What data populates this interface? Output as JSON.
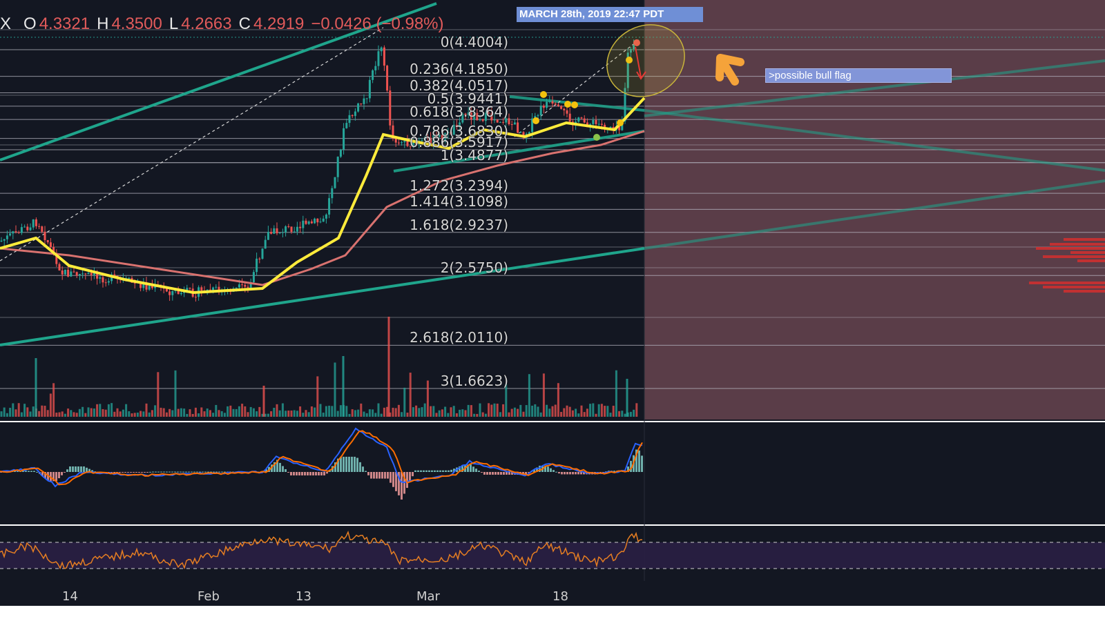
{
  "header": {
    "symbol_fragment": "X",
    "open_key": "O",
    "open_value": "4.3321",
    "high_key": "H",
    "high_value": "4.3500",
    "low_key": "L",
    "low_value": "4.2663",
    "close_key": "C",
    "close_value": "4.2919",
    "change_text": "−0.0426 (−0.98%)"
  },
  "timestamp_label": "MARCH 28th, 2019 22:47 PDT",
  "annotation_note": ">possible bull flag",
  "fib_levels": [
    {
      "label": "0(4.4004)",
      "price": 4.4004
    },
    {
      "label": "0.236(4.1850)",
      "price": 4.185
    },
    {
      "label": "0.382(4.0517)",
      "price": 4.0517
    },
    {
      "label": "0.5(3.9441)",
      "price": 3.9441
    },
    {
      "label": "0.618(3.8364)",
      "price": 3.8364
    },
    {
      "label": "0.786(3.6830)",
      "price": 3.683
    },
    {
      "label": "0.886(3.5917)",
      "price": 3.5917
    },
    {
      "label": "1(3.4877)",
      "price": 3.4877
    },
    {
      "label": "1.272(3.2394)",
      "price": 3.2394
    },
    {
      "label": "1.414(3.1098)",
      "price": 3.1098
    },
    {
      "label": "1.618(2.9237)",
      "price": 2.9237
    },
    {
      "label": "2(2.5750)",
      "price": 2.575
    },
    {
      "label": "2.618(2.0110)",
      "price": 2.011
    },
    {
      "label": "3(1.6623)",
      "price": 1.6623
    }
  ],
  "x_axis": {
    "ticks": [
      "14",
      "Feb",
      "13",
      "Mar",
      "18"
    ]
  },
  "colors": {
    "background": "#131722",
    "bull_candle": "#26a69a",
    "bear_candle": "#ef5350",
    "ema_fast": "#ffeb3b",
    "ema_slow": "#d9726f",
    "trendline": "#1fa58c",
    "projection_zone": "#5a3d48",
    "macd_line": "#2962ff",
    "signal_line": "#ff6d00",
    "rsi_line": "#e67e22",
    "rsi_band": "#2a1f44",
    "arrow": "#f5a33a",
    "timestamp_box": "#6f8fd6",
    "note_box": "#8295d8"
  },
  "icons": {
    "pointer": "arrow-pointer-icon",
    "target": "ellipse-highlight-icon",
    "drop": "down-arrow-icon"
  }
}
